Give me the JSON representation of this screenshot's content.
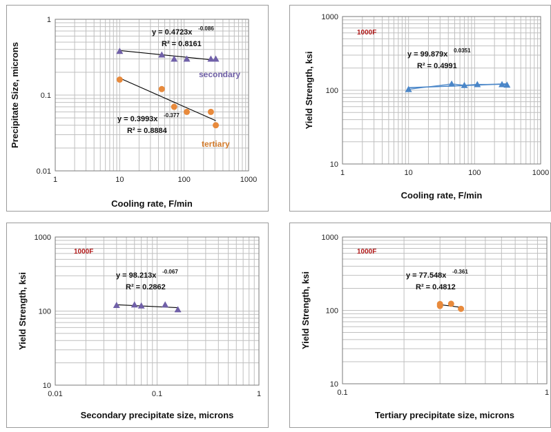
{
  "colors": {
    "triangle": "#7060a8",
    "circle": "#e88a3c",
    "blue_line": "#4a86c8",
    "trend": "#000000",
    "grid": "#bfbfbf",
    "tag": "#b01818",
    "secondary_label": "#7060a8",
    "tertiary_label": "#d27a2a"
  },
  "chart_data": [
    {
      "type": "scatter",
      "xscale": "log",
      "yscale": "log",
      "xlim": [
        1,
        1000
      ],
      "ylim": [
        0.01,
        1
      ],
      "xticks": [
        "1",
        "10",
        "100",
        "1000"
      ],
      "yticks": [
        "0.01",
        "0.1",
        "1"
      ],
      "xlabel": "Cooling rate, F/min",
      "ylabel": "Precipitate Size, microns",
      "tag": "",
      "series": [
        {
          "name": "secondary",
          "marker": "triangle",
          "x": [
            10,
            45,
            70,
            110,
            260,
            310
          ],
          "y": [
            0.38,
            0.34,
            0.3,
            0.3,
            0.3,
            0.3
          ],
          "trend": {
            "a": 0.4723,
            "b": -0.086,
            "x0": 10,
            "x1": 310
          },
          "equation": {
            "prefix": "y = 0.4723x",
            "exp": "-0.086",
            "r2": "R² = 0.8161"
          }
        },
        {
          "name": "tertiary",
          "marker": "circle",
          "x": [
            10,
            45,
            70,
            110,
            260,
            310
          ],
          "y": [
            0.16,
            0.12,
            0.07,
            0.06,
            0.06,
            0.04
          ],
          "trend": {
            "a": 0.3993,
            "b": -0.377,
            "x0": 10,
            "x1": 310
          },
          "equation": {
            "prefix": "y = 0.3993x",
            "exp": "-0.377",
            "r2": "R² = 0.8884"
          }
        }
      ]
    },
    {
      "type": "scatter",
      "xscale": "log",
      "yscale": "log",
      "xlim": [
        1,
        1000
      ],
      "ylim": [
        10,
        1000
      ],
      "xticks": [
        "1",
        "10",
        "100",
        "1000"
      ],
      "yticks": [
        "10",
        "100",
        "1000"
      ],
      "xlabel": "Cooling rate, F/min",
      "ylabel": "Yield Strength, ksi",
      "tag": "1000F",
      "series": [
        {
          "name": "",
          "marker": "triangle",
          "x": [
            10,
            45,
            70,
            110,
            260,
            310
          ],
          "y": [
            103,
            122,
            117,
            120,
            120,
            118
          ],
          "trend": {
            "a": 99.879,
            "b": 0.0351,
            "x0": 10,
            "x1": 310,
            "color": "blue"
          },
          "equation": {
            "prefix": "y = 99.879x",
            "exp": "0.0351",
            "r2": "R² = 0.4991"
          }
        }
      ]
    },
    {
      "type": "scatter",
      "xscale": "log",
      "yscale": "log",
      "xlim": [
        0.01,
        1
      ],
      "ylim": [
        10,
        1000
      ],
      "xticks": [
        "0.01",
        "0.1",
        "1"
      ],
      "yticks": [
        "10",
        "100",
        "1000"
      ],
      "xlabel": "Secondary precipitate size, microns",
      "ylabel": "Yield Strength, ksi",
      "tag": "1000F",
      "series": [
        {
          "name": "",
          "marker": "triangle",
          "x": [
            0.04,
            0.06,
            0.07,
            0.12,
            0.16
          ],
          "y": [
            120,
            122,
            118,
            122,
            105
          ],
          "trend": {
            "a": 98.213,
            "b": -0.067,
            "x0": 0.04,
            "x1": 0.16
          },
          "equation": {
            "prefix": "y = 98.213x",
            "exp": "-0.067",
            "r2": "R² = 0.2862"
          }
        }
      ]
    },
    {
      "type": "scatter",
      "xscale": "log",
      "yscale": "log",
      "xlim": [
        0.1,
        1
      ],
      "ylim": [
        10,
        1000
      ],
      "xticks": [
        "0.1",
        "1"
      ],
      "yticks": [
        "10",
        "100",
        "1000"
      ],
      "xlabel": "Tertiary precipitate size, microns",
      "ylabel": "Yield Strength, ksi",
      "tag": "1000F",
      "series": [
        {
          "name": "",
          "marker": "circle",
          "x": [
            0.3,
            0.3,
            0.34,
            0.38
          ],
          "y": [
            115,
            122,
            123,
            105
          ],
          "trend": {
            "a": 77.548,
            "b": -0.361,
            "x0": 0.3,
            "x1": 0.38
          },
          "equation": {
            "prefix": "y = 77.548x",
            "exp": "-0.361",
            "r2": "R² = 0.4812"
          }
        }
      ]
    }
  ]
}
